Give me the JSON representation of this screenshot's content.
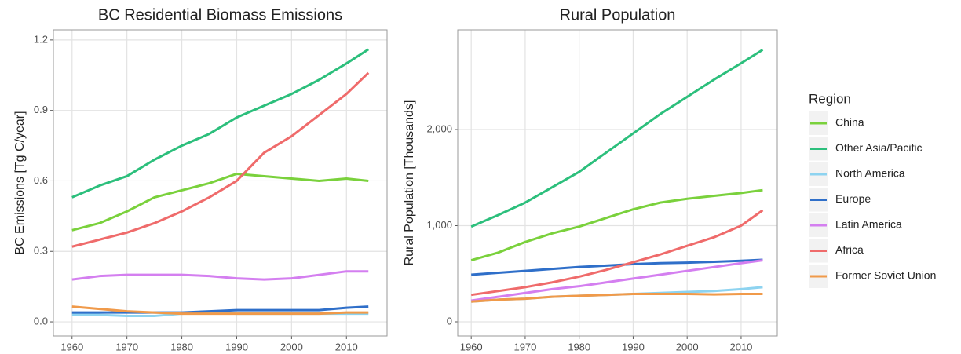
{
  "chart_data": [
    {
      "type": "line",
      "title": "BC Residential Biomass Emissions",
      "y_label": "BC Emissions [Tg C/year]",
      "legend_title": "Region",
      "x": [
        1960,
        1965,
        1970,
        1975,
        1980,
        1985,
        1990,
        1995,
        2000,
        2005,
        2010,
        2014
      ],
      "xlim": [
        1956.6,
        2017.4
      ],
      "xticks": [
        1960,
        1970,
        1980,
        1990,
        2000,
        2010
      ],
      "ylim": [
        -0.06,
        1.243
      ],
      "yticks": [
        {
          "value": 0,
          "label": "0.0"
        },
        {
          "value": 0.3,
          "label": "0.3"
        },
        {
          "value": 0.6,
          "label": "0.6"
        },
        {
          "value": 0.9,
          "label": "0.9"
        },
        {
          "value": 1.2,
          "label": "1.2"
        }
      ],
      "grid": true,
      "series": [
        {
          "name": "China",
          "color": "#7ad13c",
          "values": [
            0.39,
            0.42,
            0.47,
            0.53,
            0.56,
            0.59,
            0.63,
            0.62,
            0.61,
            0.6,
            0.61,
            0.6
          ]
        },
        {
          "name": "Other Asia/Pacific",
          "color": "#2cbf7c",
          "values": [
            0.53,
            0.58,
            0.62,
            0.69,
            0.75,
            0.8,
            0.87,
            0.92,
            0.97,
            1.03,
            1.1,
            1.16
          ]
        },
        {
          "name": "North America",
          "color": "#8dd3f0",
          "values": [
            0.03,
            0.03,
            0.025,
            0.025,
            0.035,
            0.04,
            0.035,
            0.035,
            0.035,
            0.035,
            0.035,
            0.035
          ]
        },
        {
          "name": "Europe",
          "color": "#2f6fc9",
          "values": [
            0.04,
            0.04,
            0.04,
            0.04,
            0.04,
            0.045,
            0.05,
            0.05,
            0.05,
            0.05,
            0.06,
            0.065
          ]
        },
        {
          "name": "Latin America",
          "color": "#d47ff0",
          "values": [
            0.18,
            0.195,
            0.2,
            0.2,
            0.2,
            0.195,
            0.185,
            0.18,
            0.185,
            0.2,
            0.215,
            0.215
          ]
        },
        {
          "name": "Africa",
          "color": "#ef6b6b",
          "values": [
            0.32,
            0.35,
            0.38,
            0.42,
            0.47,
            0.53,
            0.6,
            0.72,
            0.79,
            0.88,
            0.97,
            1.06
          ]
        },
        {
          "name": "Former Soviet Union",
          "color": "#f09a4a",
          "values": [
            0.065,
            0.055,
            0.045,
            0.04,
            0.035,
            0.035,
            0.035,
            0.035,
            0.035,
            0.035,
            0.04,
            0.04
          ]
        }
      ]
    },
    {
      "type": "line",
      "title": "Rural Population",
      "y_label": "Rural Population [Thousands]",
      "x": [
        1960,
        1965,
        1970,
        1975,
        1980,
        1985,
        1990,
        1995,
        2000,
        2005,
        2010,
        2014
      ],
      "xlim": [
        1957.5,
        2016.7
      ],
      "xticks": [
        1960,
        1970,
        1980,
        1990,
        2000,
        2010
      ],
      "ylim": [
        -147,
        3037
      ],
      "yticks": [
        0,
        {
          "value": 1000,
          "label": "1,000"
        },
        {
          "value": 2000,
          "label": "2,000"
        }
      ],
      "grid": true,
      "series": [
        {
          "color": "#7ad13c",
          "values": [
            640,
            720,
            830,
            920,
            990,
            1080,
            1170,
            1240,
            1280,
            1310,
            1340,
            1370
          ]
        },
        {
          "color": "#2cbf7c",
          "values": [
            990,
            1110,
            1240,
            1400,
            1560,
            1760,
            1960,
            2160,
            2340,
            2520,
            2690,
            2830
          ]
        },
        {
          "color": "#8dd3f0",
          "values": [
            210,
            230,
            240,
            260,
            270,
            280,
            290,
            300,
            310,
            320,
            340,
            360
          ]
        },
        {
          "color": "#2f6fc9",
          "values": [
            490,
            510,
            530,
            550,
            570,
            585,
            600,
            610,
            615,
            625,
            635,
            645
          ]
        },
        {
          "color": "#d47ff0",
          "values": [
            220,
            260,
            300,
            340,
            370,
            410,
            450,
            490,
            530,
            570,
            610,
            640
          ]
        },
        {
          "color": "#ef6b6b",
          "values": [
            280,
            320,
            360,
            410,
            470,
            540,
            620,
            700,
            790,
            880,
            1000,
            1160
          ]
        },
        {
          "color": "#f09a4a",
          "values": [
            210,
            230,
            240,
            260,
            270,
            280,
            290,
            290,
            290,
            285,
            290,
            290
          ]
        }
      ]
    }
  ]
}
